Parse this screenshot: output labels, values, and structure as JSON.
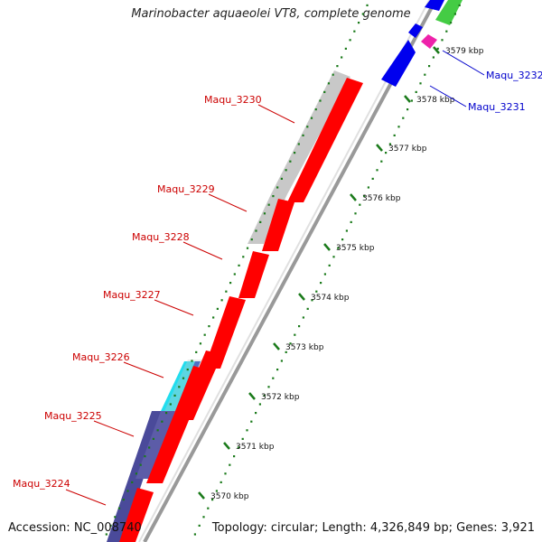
{
  "title": "Marinobacter aquaeolei VT8, complete genome",
  "footer": {
    "accession": "Accession: NC_008740",
    "topology": "Topology: circular; Length: 4,326,849 bp; Genes: 3,921"
  },
  "colors": {
    "red_gene": "#ff0000",
    "red_label": "#cc0000",
    "blue_gene": "#0000ee",
    "blue_label": "#0000cc",
    "grey_track": "#c8c8c8",
    "navy_track": "#4a4a9a",
    "cyan_track": "#22ddee",
    "magenta_gene": "#ee22aa",
    "green_gene": "#44cc44",
    "tick_green": "#1a7a1a",
    "backbone": "#999999"
  },
  "ticks": [
    {
      "label": "3570 kbp",
      "kbp": 3570
    },
    {
      "label": "3571 kbp",
      "kbp": 3571
    },
    {
      "label": "3572 kbp",
      "kbp": 3572
    },
    {
      "label": "3573 kbp",
      "kbp": 3573
    },
    {
      "label": "3574 kbp",
      "kbp": 3574
    },
    {
      "label": "3575 kbp",
      "kbp": 3575
    },
    {
      "label": "3576 kbp",
      "kbp": 3576
    },
    {
      "label": "3577 kbp",
      "kbp": 3577
    },
    {
      "label": "3578 kbp",
      "kbp": 3578
    },
    {
      "label": "3579 kbp",
      "kbp": 3579
    }
  ],
  "genes_red": [
    {
      "label": "Maqu_3224"
    },
    {
      "label": "Maqu_3225"
    },
    {
      "label": "Maqu_3226"
    },
    {
      "label": "Maqu_3227"
    },
    {
      "label": "Maqu_3228"
    },
    {
      "label": "Maqu_3229"
    },
    {
      "label": "Maqu_3230"
    }
  ],
  "genes_blue": [
    {
      "label": "Maqu_3231"
    },
    {
      "label": "Maqu_3232"
    }
  ]
}
